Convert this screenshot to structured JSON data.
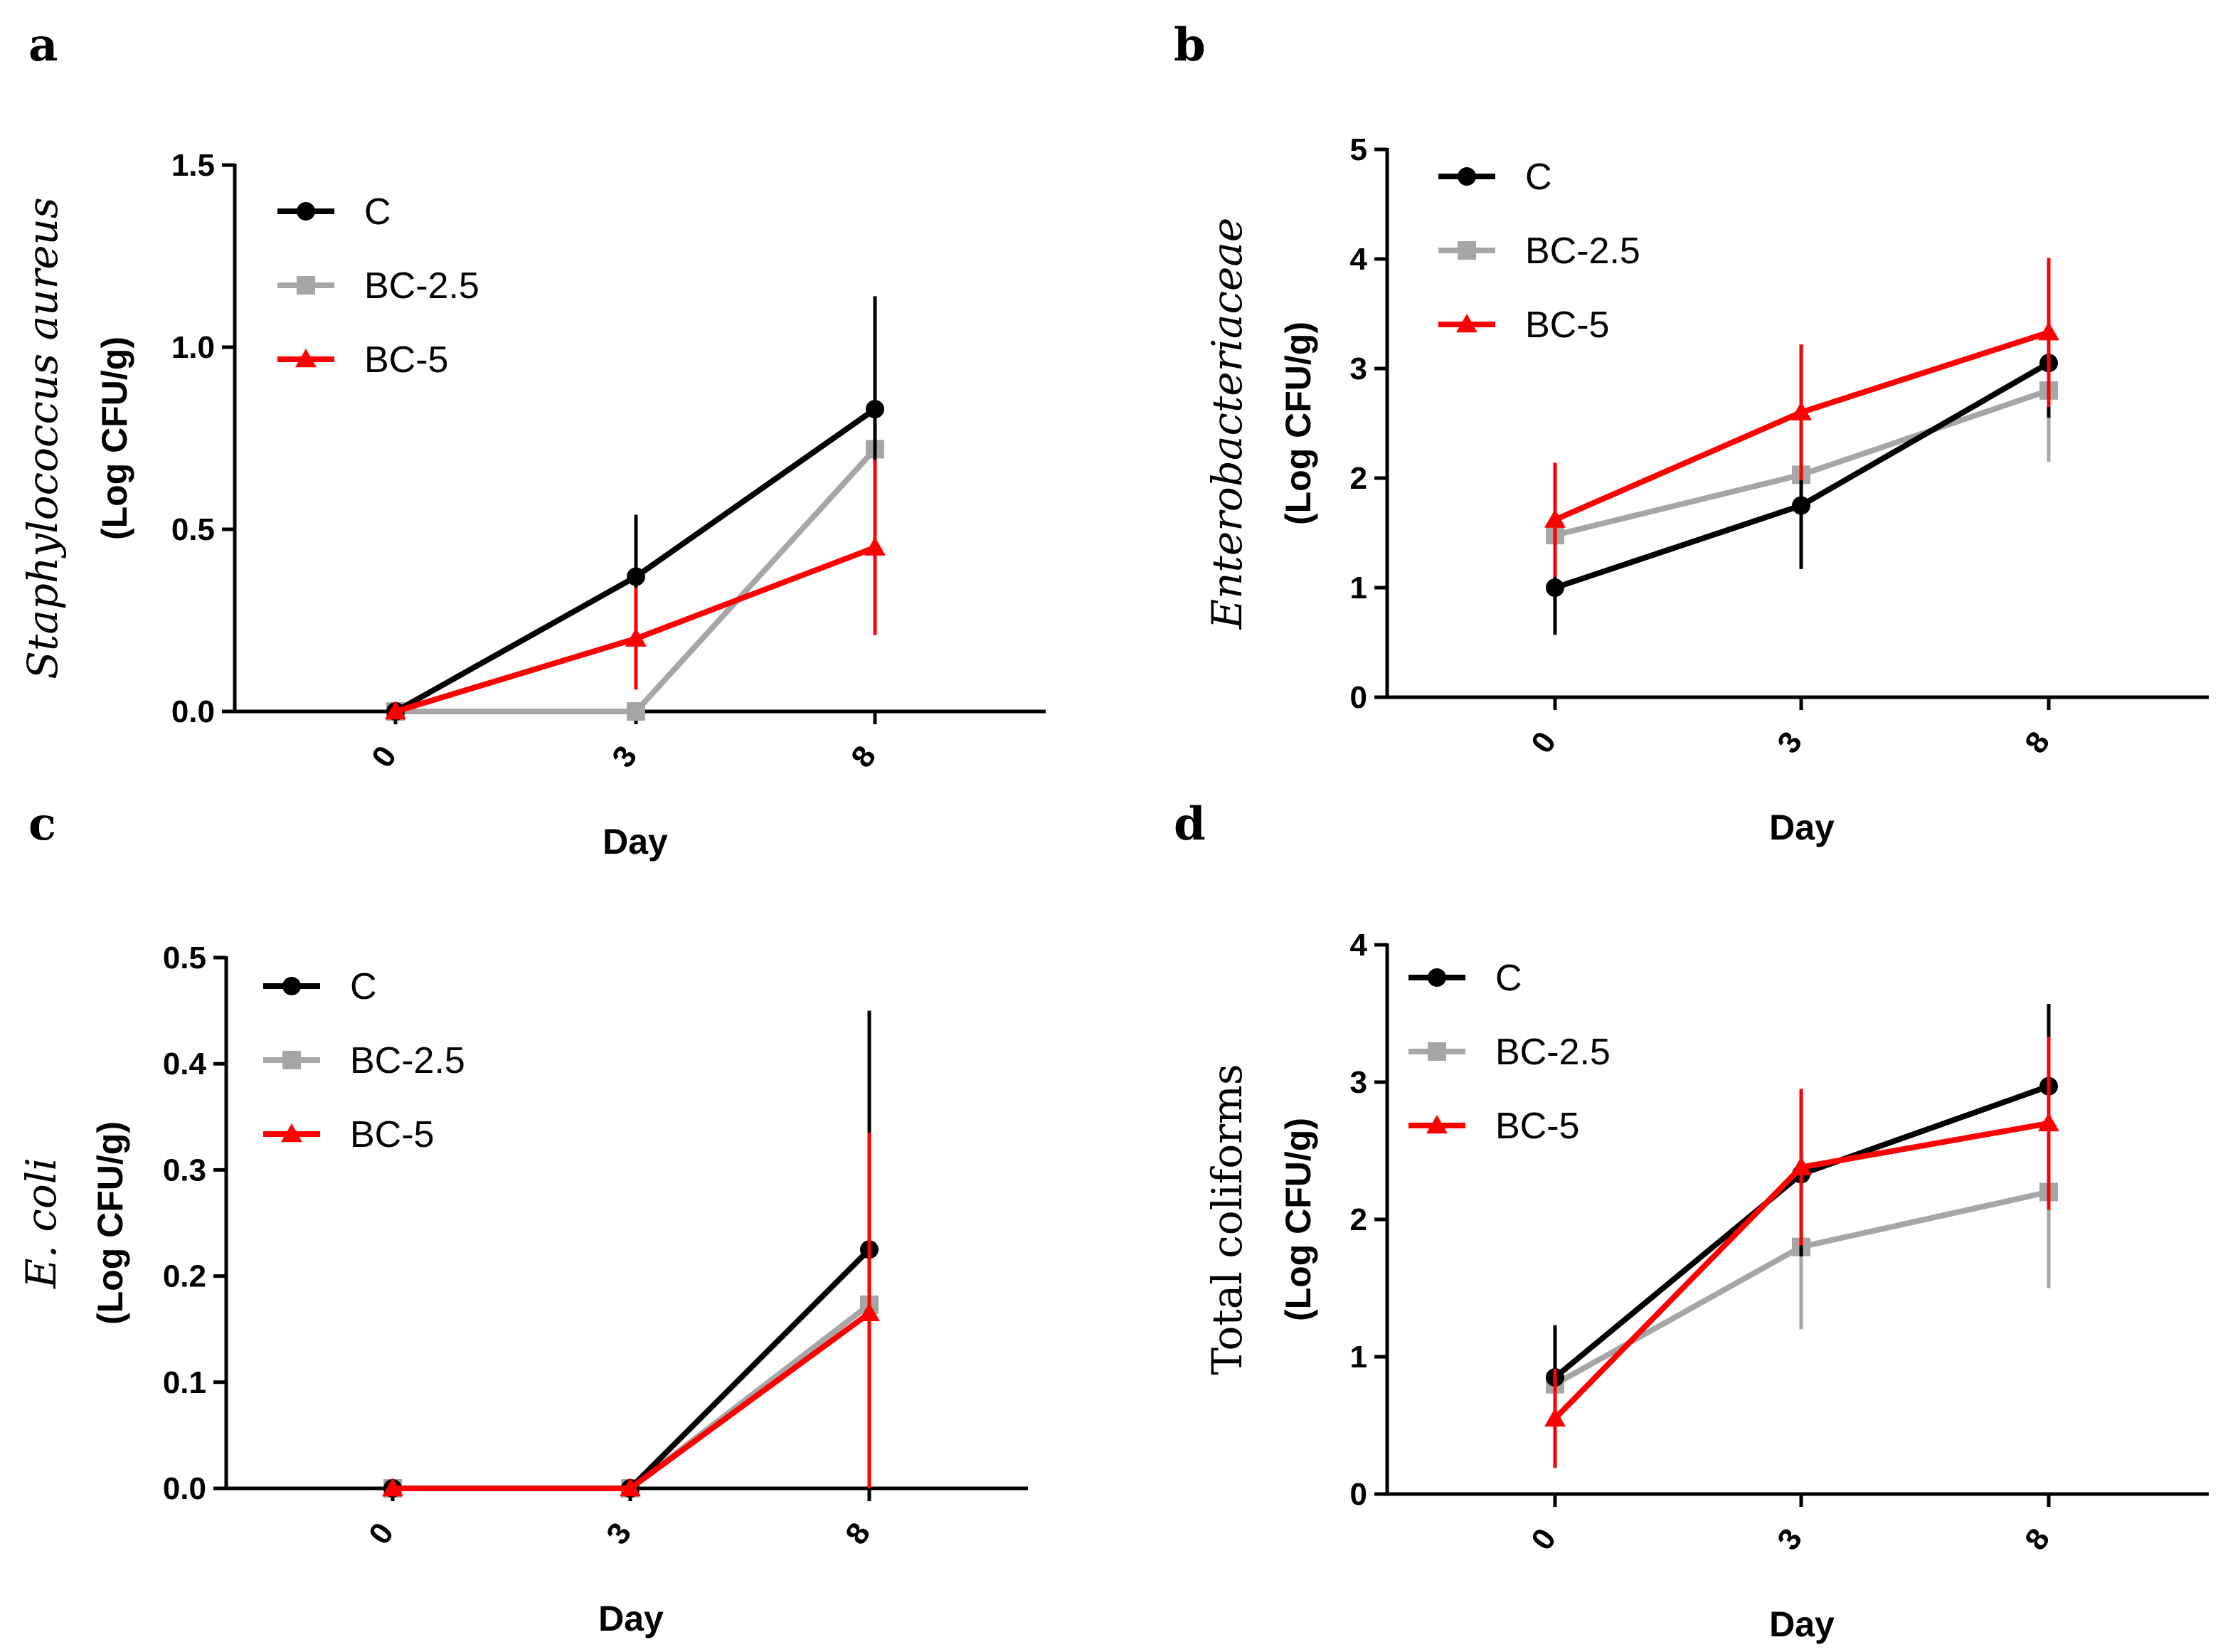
{
  "colors": {
    "C": "#000000",
    "BC-2.5": "#a6a6a6",
    "BC-5": "#ff0000"
  },
  "chart_data": [
    {
      "type": "line",
      "panel": "a",
      "organism": "Staphylococcus aureus",
      "organism_italic": true,
      "ylabel": "(Log CFU/g)",
      "xlabel": "Day",
      "categories": [
        "0",
        "3",
        "8"
      ],
      "ylim": [
        0,
        1.5
      ],
      "yticks": [
        "0.0",
        "0.5",
        "1.0",
        "1.5"
      ],
      "legend": "top-left",
      "series": [
        {
          "name": "C",
          "marker": "circle",
          "values": [
            0,
            0.37,
            0.83
          ],
          "errors": [
            0,
            0.17,
            0.31
          ]
        },
        {
          "name": "BC-2.5",
          "marker": "square",
          "values": [
            0,
            0,
            0.72
          ],
          "errors": [
            0,
            0,
            0.32
          ]
        },
        {
          "name": "BC-5",
          "marker": "triangle",
          "values": [
            0,
            0.2,
            0.45
          ],
          "errors": [
            0,
            0.14,
            0.24
          ]
        }
      ]
    },
    {
      "type": "line",
      "panel": "b",
      "organism": "Enterobacteriaceae",
      "organism_italic": true,
      "ylabel": "(Log CFU/g)",
      "xlabel": "Day",
      "categories": [
        "0",
        "3",
        "8"
      ],
      "ylim": [
        0,
        5
      ],
      "yticks": [
        "0",
        "1",
        "2",
        "3",
        "4",
        "5"
      ],
      "legend": "top-left",
      "series": [
        {
          "name": "C",
          "marker": "circle",
          "values": [
            1.0,
            1.75,
            3.05
          ],
          "errors": [
            0.43,
            0.58,
            0.5
          ]
        },
        {
          "name": "BC-2.5",
          "marker": "square",
          "values": [
            1.48,
            2.03,
            2.8
          ],
          "errors": [
            0.4,
            0.4,
            0.65
          ]
        },
        {
          "name": "BC-5",
          "marker": "triangle",
          "values": [
            1.62,
            2.6,
            3.33
          ],
          "errors": [
            0.52,
            0.62,
            0.68
          ]
        }
      ]
    },
    {
      "type": "line",
      "panel": "c",
      "organism": "E. coli",
      "organism_italic": true,
      "ylabel": "(Log CFU/g)",
      "xlabel": "Day",
      "categories": [
        "0",
        "3",
        "8"
      ],
      "ylim": [
        0,
        0.5
      ],
      "yticks": [
        "0.0",
        "0.1",
        "0.2",
        "0.3",
        "0.4",
        "0.5"
      ],
      "legend": "top-left",
      "series": [
        {
          "name": "C",
          "marker": "circle",
          "values": [
            0,
            0,
            0.225
          ],
          "errors": [
            0,
            0,
            0.225
          ]
        },
        {
          "name": "BC-2.5",
          "marker": "square",
          "values": [
            0,
            0,
            0.173
          ],
          "errors": [
            0,
            0,
            0.17
          ]
        },
        {
          "name": "BC-5",
          "marker": "triangle",
          "values": [
            0,
            0,
            0.165
          ],
          "errors": [
            0,
            0,
            0.17
          ]
        }
      ]
    },
    {
      "type": "line",
      "panel": "d",
      "organism": "Total coliforms",
      "organism_italic": false,
      "ylabel": "(Log CFU/g)",
      "xlabel": "Day",
      "categories": [
        "0",
        "3",
        "8"
      ],
      "ylim": [
        0,
        4
      ],
      "yticks": [
        "0",
        "1",
        "2",
        "3",
        "4"
      ],
      "legend": "top-left",
      "series": [
        {
          "name": "C",
          "marker": "circle",
          "values": [
            0.85,
            2.33,
            2.97
          ],
          "errors": [
            0.38,
            0.6,
            0.6
          ]
        },
        {
          "name": "BC-2.5",
          "marker": "square",
          "values": [
            0.8,
            1.8,
            2.2
          ],
          "errors": [
            0.42,
            0.6,
            0.7
          ]
        },
        {
          "name": "BC-5",
          "marker": "triangle",
          "values": [
            0.55,
            2.38,
            2.7
          ],
          "errors": [
            0.36,
            0.57,
            0.63
          ]
        }
      ]
    }
  ]
}
